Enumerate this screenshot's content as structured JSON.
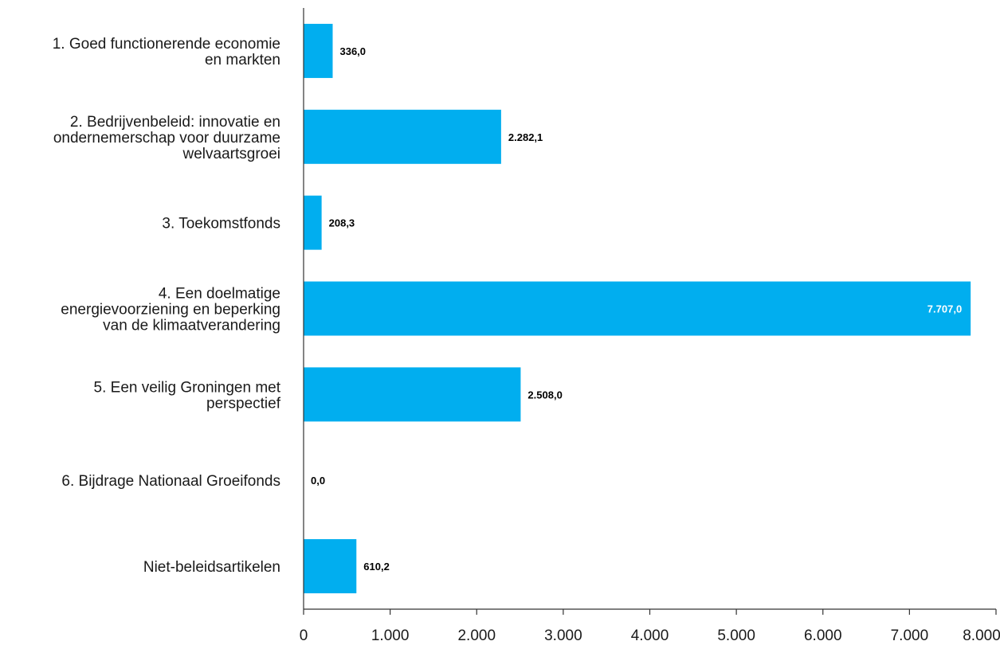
{
  "chart_data": {
    "type": "bar",
    "orientation": "horizontal",
    "categories": [
      [
        "1. Goed functionerende economie",
        "en markten"
      ],
      [
        "2. Bedrijvenbeleid: innovatie en",
        "ondernemerschap voor duurzame",
        "welvaartsgroei"
      ],
      [
        "3. Toekomstfonds"
      ],
      [
        "4. Een doelmatige",
        "energievoorziening en beperking",
        "van de klimaatverandering"
      ],
      [
        "5. Een veilig Groningen met",
        "perspectief"
      ],
      [
        "6. Bijdrage Nationaal Groeifonds"
      ],
      [
        "Niet-beleidsartikelen"
      ]
    ],
    "values": [
      336.0,
      2282.1,
      208.3,
      7707.0,
      2508.0,
      0.0,
      610.2
    ],
    "value_labels": [
      "336,0",
      "2.282,1",
      "208,3",
      "7.707,0",
      "2.508,0",
      "0,0",
      "610,2"
    ],
    "x_ticks": [
      0,
      1000,
      2000,
      3000,
      4000,
      5000,
      6000,
      7000,
      8000
    ],
    "x_tick_labels": [
      "0",
      "1.000",
      "2.000",
      "3.000",
      "4.000",
      "5.000",
      "6.000",
      "7.000",
      "8.000"
    ],
    "xlim": [
      0,
      8000
    ],
    "grid": false,
    "legend": "none",
    "colors": {
      "bar": "#01aeef",
      "axis": "#333333",
      "label_inside": "#ffffff",
      "label_outside": "#000000"
    }
  }
}
